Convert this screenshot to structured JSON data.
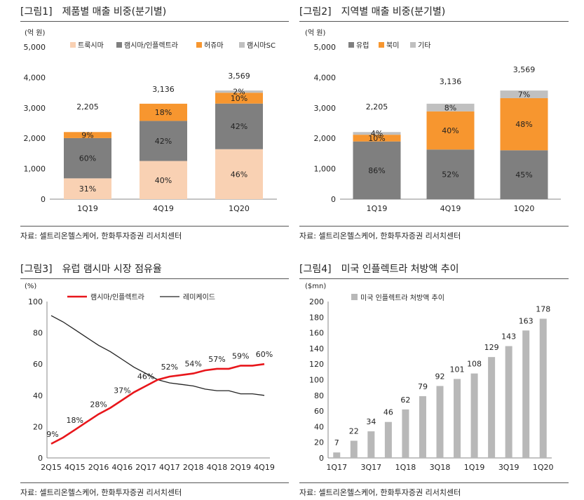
{
  "colors": {
    "peach": "#f9d1b3",
    "gray": "#7f7f7f",
    "orange": "#f7962f",
    "light": "#c0c0c0",
    "red": "#e8161b",
    "black": "#222222",
    "bar": "#b8b8b8"
  },
  "panels": [
    {
      "num": "[그림1]",
      "title": "제품별 매출 비중(분기별)",
      "source": "자료: 셀트리온헬스케어, 한화투자증권 리서치센터"
    },
    {
      "num": "[그림2]",
      "title": "지역별 매출 비중(분기별)",
      "source": "자료: 셀트리온헬스케어, 한화투자증권 리서치센터"
    },
    {
      "num": "[그림3]",
      "title": "유럽 램시마 시장 점유율",
      "source": "자료: 셀트리온헬스케어, 한화투자증권 리서치센터"
    },
    {
      "num": "[그림4]",
      "title": "미국 인플렉트라 처방액 추이",
      "source": "자료: 셀트리온헬스케어, 한화투자증권 리서치센터"
    }
  ],
  "chart_data": [
    {
      "type": "bar",
      "stacked": true,
      "title": "제품별 매출 비중(분기별)",
      "ylabel": "(억 원)",
      "ylim": [
        0,
        5000
      ],
      "yticks": [
        "0",
        "1,000",
        "2,000",
        "3,000",
        "4,000",
        "5,000"
      ],
      "categories": [
        "1Q19",
        "4Q19",
        "1Q20"
      ],
      "totals": [
        2205,
        3136,
        3569
      ],
      "total_labels": [
        "2,205",
        "3,136",
        "3,569"
      ],
      "series": [
        {
          "name": "트룩시마",
          "color": "#f9d1b3",
          "share": [
            31,
            40,
            46
          ],
          "labels": [
            "31%",
            "40%",
            "46%"
          ]
        },
        {
          "name": "램시마/인플렉트라",
          "color": "#7f7f7f",
          "share": [
            60,
            42,
            42
          ],
          "labels": [
            "60%",
            "42%",
            "42%"
          ]
        },
        {
          "name": "허쥬마",
          "color": "#f7962f",
          "share": [
            9,
            18,
            10
          ],
          "labels": [
            "9%",
            "18%",
            "10%"
          ]
        },
        {
          "name": "램시마SC",
          "color": "#c0c0c0",
          "share": [
            0,
            0,
            2
          ],
          "labels": [
            "",
            "",
            "2%"
          ]
        }
      ],
      "legend": "top"
    },
    {
      "type": "bar",
      "stacked": true,
      "title": "지역별 매출 비중(분기별)",
      "ylabel": "(억 원)",
      "ylim": [
        0,
        5000
      ],
      "yticks": [
        "0",
        "1,000",
        "2,000",
        "3,000",
        "4,000",
        "5,000"
      ],
      "categories": [
        "1Q19",
        "4Q19",
        "1Q20"
      ],
      "totals": [
        2205,
        3136,
        3569
      ],
      "total_labels": [
        "2,205",
        "3,136",
        "3,569"
      ],
      "series": [
        {
          "name": "유럽",
          "color": "#7f7f7f",
          "share": [
            86,
            52,
            45
          ],
          "labels": [
            "86%",
            "52%",
            "45%"
          ]
        },
        {
          "name": "북미",
          "color": "#f7962f",
          "share": [
            10,
            40,
            48
          ],
          "labels": [
            "10%",
            "40%",
            "48%"
          ]
        },
        {
          "name": "기타",
          "color": "#c0c0c0",
          "share": [
            4,
            8,
            7
          ],
          "labels": [
            "4%",
            "8%",
            "7%"
          ]
        }
      ],
      "legend": "top"
    },
    {
      "type": "line",
      "title": "유럽 램시마 시장 점유율",
      "ylabel": "(%)",
      "ylim": [
        0,
        100
      ],
      "yticks": [
        "0",
        "20",
        "40",
        "60",
        "80",
        "100"
      ],
      "x": [
        "2Q15",
        "3Q15",
        "4Q15",
        "1Q16",
        "2Q16",
        "3Q16",
        "4Q16",
        "1Q17",
        "2Q17",
        "3Q17",
        "4Q17",
        "1Q18",
        "2Q18",
        "3Q18",
        "4Q18",
        "1Q19",
        "2Q19",
        "3Q19",
        "4Q19"
      ],
      "xticks": [
        "2Q15",
        "4Q15",
        "2Q16",
        "4Q16",
        "2Q17",
        "4Q17",
        "2Q18",
        "4Q18",
        "2Q19",
        "4Q19"
      ],
      "series": [
        {
          "name": "램시마/인플렉트라",
          "color": "#e8161b",
          "values": [
            9,
            13,
            18,
            23,
            28,
            32,
            37,
            42,
            46,
            50,
            52,
            53,
            54,
            56,
            57,
            57,
            59,
            59,
            60
          ]
        },
        {
          "name": "레미케이드",
          "color": "#222222",
          "values": [
            91,
            87,
            82,
            77,
            72,
            68,
            63,
            58,
            54,
            50,
            48,
            47,
            46,
            44,
            43,
            43,
            41,
            41,
            40
          ]
        }
      ],
      "annotations": [
        {
          "index": 0,
          "label": "9%"
        },
        {
          "index": 2,
          "label": "18%"
        },
        {
          "index": 4,
          "label": "28%"
        },
        {
          "index": 6,
          "label": "37%"
        },
        {
          "index": 8,
          "label": "46%"
        },
        {
          "index": 10,
          "label": "52%"
        },
        {
          "index": 12,
          "label": "54%"
        },
        {
          "index": 14,
          "label": "57%"
        },
        {
          "index": 16,
          "label": "59%"
        },
        {
          "index": 18,
          "label": "60%"
        }
      ],
      "legend": "top"
    },
    {
      "type": "bar",
      "title": "미국 인플렉트라 처방액 추이",
      "ylabel": "($mn)",
      "ylim": [
        0,
        200
      ],
      "yticks": [
        "0",
        "20",
        "40",
        "60",
        "80",
        "100",
        "120",
        "140",
        "160",
        "180",
        "200"
      ],
      "x": [
        "1Q17",
        "2Q17",
        "3Q17",
        "4Q17",
        "1Q18",
        "2Q18",
        "3Q18",
        "4Q18",
        "1Q19",
        "2Q19",
        "3Q19",
        "4Q19",
        "1Q20"
      ],
      "xticks": [
        "1Q17",
        "3Q17",
        "1Q18",
        "3Q18",
        "1Q19",
        "3Q19",
        "1Q20"
      ],
      "series": [
        {
          "name": "미국 인플렉트라  처방액 추이",
          "color": "#b8b8b8",
          "values": [
            7,
            22,
            34,
            46,
            62,
            79,
            92,
            101,
            108,
            129,
            143,
            163,
            178
          ]
        }
      ],
      "legend": "top-left"
    }
  ]
}
